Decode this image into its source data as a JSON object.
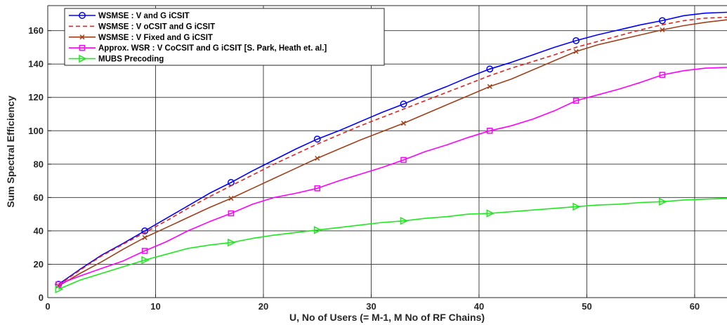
{
  "chart_data": {
    "type": "line",
    "xlabel": "U, No of Users (= M-1, M No of RF Chains)",
    "ylabel": "Sum Spectral Efficiency",
    "xlim": [
      0,
      63
    ],
    "ylim": [
      0,
      175
    ],
    "xticks": [
      0,
      10,
      20,
      30,
      40,
      50,
      60
    ],
    "yticks": [
      0,
      20,
      40,
      60,
      80,
      100,
      120,
      140,
      160
    ],
    "grid": true,
    "legend_position": "top-left",
    "x": [
      1,
      3,
      5,
      7,
      9,
      11,
      13,
      15,
      17,
      19,
      21,
      23,
      25,
      27,
      29,
      31,
      33,
      35,
      37,
      39,
      41,
      43,
      45,
      47,
      49,
      51,
      53,
      55,
      57,
      59,
      61,
      63
    ],
    "series": [
      {
        "name": "WSMSE : V and G iCSIT",
        "color": "#0000ff",
        "dash": "solid",
        "marker": "circle",
        "values": [
          8,
          17,
          25.5,
          32.5,
          40,
          47.5,
          55,
          62.5,
          69,
          76,
          82.5,
          89,
          95,
          100,
          105.5,
          111,
          116,
          121.5,
          126.5,
          132,
          137,
          141,
          145.5,
          150,
          154,
          157.5,
          160.5,
          163.5,
          166,
          169,
          170.5,
          171
        ]
      },
      {
        "name": "WSMSE : V oCSIT and G iCSIT",
        "color": "#e8211c",
        "dash": "6,4",
        "marker": "none",
        "values": [
          7.5,
          16.5,
          25,
          32,
          39,
          46,
          53.5,
          60.5,
          67,
          73.5,
          80,
          86,
          92,
          97.5,
          103,
          108,
          113,
          118,
          123,
          128,
          133,
          137.5,
          141.5,
          145.5,
          150,
          153.5,
          157,
          160.5,
          163.5,
          166,
          167.5,
          168
        ]
      },
      {
        "name": "WSMSE : V Fixed and G iCSIT",
        "color": "#a0401a",
        "dash": "solid",
        "marker": "x",
        "values": [
          7,
          14.5,
          21.5,
          29,
          36,
          42,
          48,
          54,
          59.5,
          65.5,
          71.5,
          77.5,
          83.5,
          89,
          94.5,
          99.5,
          104.5,
          110,
          115.5,
          121,
          126.5,
          131,
          136.5,
          142,
          147.5,
          151.5,
          154.5,
          157.5,
          160.5,
          163,
          165,
          166.5
        ]
      },
      {
        "name": "Approx. WSR : V CoCSIT and G iCSIT [S. Park, Heath et. al.]",
        "color": "#ff00ff",
        "dash": "solid",
        "marker": "square",
        "values": [
          8,
          13,
          17.5,
          22,
          28,
          33.5,
          40,
          45.5,
          50.5,
          56,
          60,
          62.5,
          65.5,
          70,
          74,
          78,
          82.5,
          87.5,
          91.5,
          96,
          100,
          103,
          107,
          112,
          118,
          121.5,
          125,
          129,
          133.5,
          136,
          137.5,
          138
        ]
      },
      {
        "name": "MUBS Precoding",
        "color": "#1ee81e",
        "dash": "solid",
        "marker": "triangle-right",
        "values": [
          5,
          10.5,
          14.5,
          18.5,
          22.5,
          26,
          29.5,
          31.5,
          33,
          35.5,
          37.5,
          39,
          40.5,
          42,
          43.5,
          45,
          46,
          47.5,
          48.5,
          50,
          50.5,
          51.5,
          52.5,
          53.5,
          54.5,
          55.5,
          56,
          57,
          57.5,
          58.5,
          59,
          59.5
        ]
      }
    ],
    "marker_x": [
      1,
      9,
      17,
      25,
      33,
      41,
      49,
      57
    ]
  }
}
